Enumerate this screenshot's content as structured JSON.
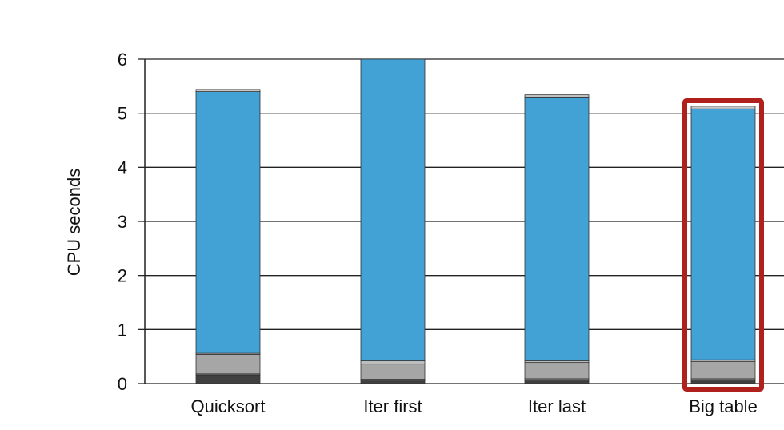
{
  "chart_data": {
    "type": "bar",
    "stacked": true,
    "ylabel": "CPU seconds",
    "xlabel": "",
    "ylim": [
      0,
      6
    ],
    "yticks": [
      "0",
      "1",
      "2",
      "3",
      "4",
      "5",
      "6"
    ],
    "grid": true,
    "categories": [
      "Quicksort",
      "Iter first",
      "Iter last",
      "Big table"
    ],
    "series": [
      {
        "color": "#404040",
        "values": [
          0.16,
          0.05,
          0.05,
          0.05
        ]
      },
      {
        "color": "#8c8c8c",
        "values": [
          0.02,
          0.03,
          0.04,
          0.04
        ]
      },
      {
        "color": "#a6a6a6",
        "values": [
          0.36,
          0.28,
          0.3,
          0.32
        ]
      },
      {
        "color": "#bdbdbd",
        "values": [
          0.02,
          0.06,
          0.03,
          0.03
        ]
      },
      {
        "color": "#42a2d6",
        "values": [
          4.84,
          5.58,
          4.88,
          4.64
        ]
      },
      {
        "color": "#c8c8c8",
        "values": [
          0.04,
          0.0,
          0.04,
          0.05
        ]
      }
    ],
    "highlight": {
      "category": "Big table",
      "color": "#b0201c"
    }
  }
}
